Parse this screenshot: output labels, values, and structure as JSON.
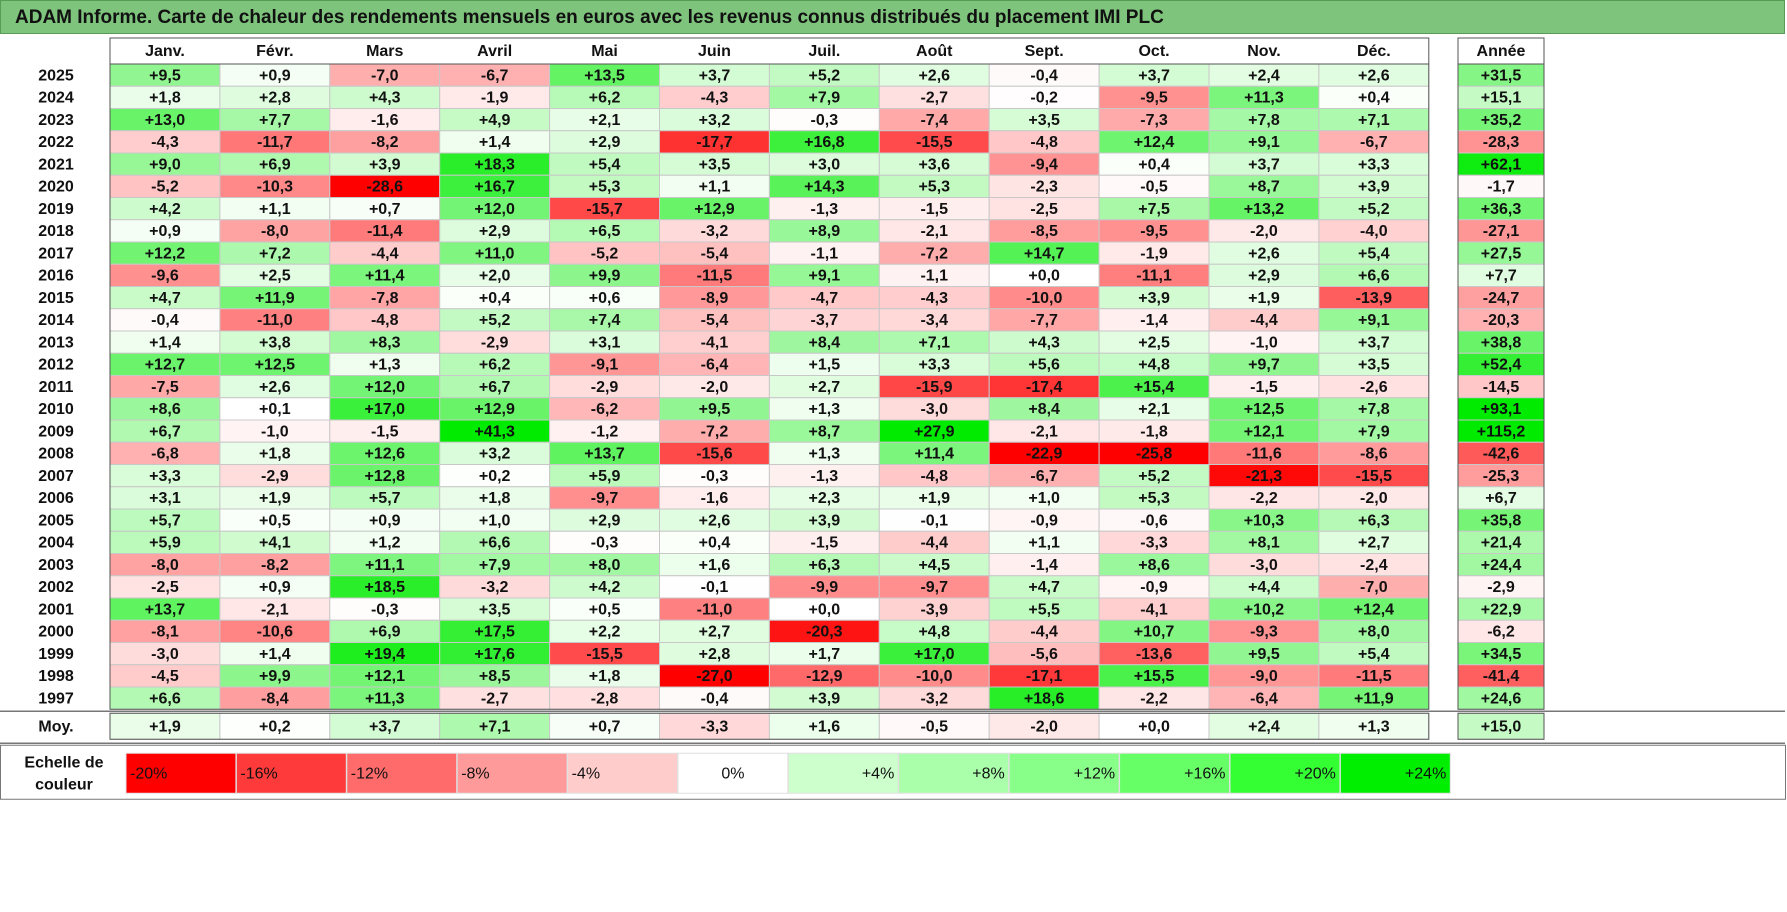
{
  "title": "ADAM Informe. Carte de chaleur des rendements mensuels en euros avec les revenus connus distribués du placement IMI PLC",
  "chart_data": {
    "type": "heatmap",
    "title": "ADAM Informe. Carte de chaleur des rendements mensuels en euros avec les revenus connus distribués du placement IMI PLC",
    "columns": [
      "Janv.",
      "Févr.",
      "Mars",
      "Avril",
      "Mai",
      "Juin",
      "Juil.",
      "Août",
      "Sept.",
      "Oct.",
      "Nov.",
      "Déc."
    ],
    "year_header": "Année",
    "rows": [
      {
        "year": "2025",
        "values": [
          "+9,5",
          "+0,9",
          "-7,0",
          "-6,7",
          "+13,5",
          "+3,7",
          "+5,2",
          "+2,6",
          "-0,4",
          "+3,7",
          "+2,4",
          "+2,6"
        ],
        "annual": "+31,5"
      },
      {
        "year": "2024",
        "values": [
          "+1,8",
          "+2,8",
          "+4,3",
          "-1,9",
          "+6,2",
          "-4,3",
          "+7,9",
          "-2,7",
          "-0,2",
          "-9,5",
          "+11,3",
          "+0,4"
        ],
        "annual": "+15,1"
      },
      {
        "year": "2023",
        "values": [
          "+13,0",
          "+7,7",
          "-1,6",
          "+4,9",
          "+2,1",
          "+3,2",
          "-0,3",
          "-7,4",
          "+3,5",
          "-7,3",
          "+7,8",
          "+7,1"
        ],
        "annual": "+35,2"
      },
      {
        "year": "2022",
        "values": [
          "-4,3",
          "-11,7",
          "-8,2",
          "+1,4",
          "+2,9",
          "-17,7",
          "+16,8",
          "-15,5",
          "-4,8",
          "+12,4",
          "+9,1",
          "-6,7"
        ],
        "annual": "-28,3"
      },
      {
        "year": "2021",
        "values": [
          "+9,0",
          "+6,9",
          "+3,9",
          "+18,3",
          "+5,4",
          "+3,5",
          "+3,0",
          "+3,6",
          "-9,4",
          "+0,4",
          "+3,7",
          "+3,3"
        ],
        "annual": "+62,1"
      },
      {
        "year": "2020",
        "values": [
          "-5,2",
          "-10,3",
          "-28,6",
          "+16,7",
          "+5,3",
          "+1,1",
          "+14,3",
          "+5,3",
          "-2,3",
          "-0,5",
          "+8,7",
          "+3,9"
        ],
        "annual": "-1,7"
      },
      {
        "year": "2019",
        "values": [
          "+4,2",
          "+1,1",
          "+0,7",
          "+12,0",
          "-15,7",
          "+12,9",
          "-1,3",
          "-1,5",
          "-2,5",
          "+7,5",
          "+13,2",
          "+5,2"
        ],
        "annual": "+36,3"
      },
      {
        "year": "2018",
        "values": [
          "+0,9",
          "-8,0",
          "-11,4",
          "+2,9",
          "+6,5",
          "-3,2",
          "+8,9",
          "-2,1",
          "-8,5",
          "-9,5",
          "-2,0",
          "-4,0"
        ],
        "annual": "-27,1"
      },
      {
        "year": "2017",
        "values": [
          "+12,2",
          "+7,2",
          "-4,4",
          "+11,0",
          "-5,2",
          "-5,4",
          "-1,1",
          "-7,2",
          "+14,7",
          "-1,9",
          "+2,6",
          "+5,4"
        ],
        "annual": "+27,5"
      },
      {
        "year": "2016",
        "values": [
          "-9,6",
          "+2,5",
          "+11,4",
          "+2,0",
          "+9,9",
          "-11,5",
          "+9,1",
          "-1,1",
          "+0,0",
          "-11,1",
          "+2,9",
          "+6,6"
        ],
        "annual": "+7,7"
      },
      {
        "year": "2015",
        "values": [
          "+4,7",
          "+11,9",
          "-7,8",
          "+0,4",
          "+0,6",
          "-8,9",
          "-4,7",
          "-4,3",
          "-10,0",
          "+3,9",
          "+1,9",
          "-13,9"
        ],
        "annual": "-24,7"
      },
      {
        "year": "2014",
        "values": [
          "-0,4",
          "-11,0",
          "-4,8",
          "+5,2",
          "+7,4",
          "-5,4",
          "-3,7",
          "-3,4",
          "-7,7",
          "-1,4",
          "-4,4",
          "+9,1"
        ],
        "annual": "-20,3"
      },
      {
        "year": "2013",
        "values": [
          "+1,4",
          "+3,8",
          "+8,3",
          "-2,9",
          "+3,1",
          "-4,1",
          "+8,4",
          "+7,1",
          "+4,3",
          "+2,5",
          "-1,0",
          "+3,7"
        ],
        "annual": "+38,8"
      },
      {
        "year": "2012",
        "values": [
          "+12,7",
          "+12,5",
          "+1,3",
          "+6,2",
          "-9,1",
          "-6,4",
          "+1,5",
          "+3,3",
          "+5,6",
          "+4,8",
          "+9,7",
          "+3,5"
        ],
        "annual": "+52,4"
      },
      {
        "year": "2011",
        "values": [
          "-7,5",
          "+2,6",
          "+12,0",
          "+6,7",
          "-2,9",
          "-2,0",
          "+2,7",
          "-15,9",
          "-17,4",
          "+15,4",
          "-1,5",
          "-2,6"
        ],
        "annual": "-14,5"
      },
      {
        "year": "2010",
        "values": [
          "+8,6",
          "+0,1",
          "+17,0",
          "+12,9",
          "-6,2",
          "+9,5",
          "+1,3",
          "-3,0",
          "+8,4",
          "+2,1",
          "+12,5",
          "+7,8"
        ],
        "annual": "+93,1"
      },
      {
        "year": "2009",
        "values": [
          "+6,7",
          "-1,0",
          "-1,5",
          "+41,3",
          "-1,2",
          "-7,2",
          "+8,7",
          "+27,9",
          "-2,1",
          "-1,8",
          "+12,1",
          "+7,9"
        ],
        "annual": "+115,2"
      },
      {
        "year": "2008",
        "values": [
          "-6,8",
          "+1,8",
          "+12,6",
          "+3,2",
          "+13,7",
          "-15,6",
          "+1,3",
          "+11,4",
          "-22,9",
          "-25,8",
          "-11,6",
          "-8,6"
        ],
        "annual": "-42,6"
      },
      {
        "year": "2007",
        "values": [
          "+3,3",
          "-2,9",
          "+12,8",
          "+0,2",
          "+5,9",
          "-0,3",
          "-1,3",
          "-4,8",
          "-6,7",
          "+5,2",
          "-21,3",
          "-15,5"
        ],
        "annual": "-25,3"
      },
      {
        "year": "2006",
        "values": [
          "+3,1",
          "+1,9",
          "+5,7",
          "+1,8",
          "-9,7",
          "-1,6",
          "+2,3",
          "+1,9",
          "+1,0",
          "+5,3",
          "-2,2",
          "-2,0"
        ],
        "annual": "+6,7"
      },
      {
        "year": "2005",
        "values": [
          "+5,7",
          "+0,5",
          "+0,9",
          "+1,0",
          "+2,9",
          "+2,6",
          "+3,9",
          "-0,1",
          "-0,9",
          "-0,6",
          "+10,3",
          "+6,3"
        ],
        "annual": "+35,8"
      },
      {
        "year": "2004",
        "values": [
          "+5,9",
          "+4,1",
          "+1,2",
          "+6,6",
          "-0,3",
          "+0,4",
          "-1,5",
          "-4,4",
          "+1,1",
          "-3,3",
          "+8,1",
          "+2,7"
        ],
        "annual": "+21,4"
      },
      {
        "year": "2003",
        "values": [
          "-8,0",
          "-8,2",
          "+11,1",
          "+7,9",
          "+8,0",
          "+1,6",
          "+6,3",
          "+4,5",
          "-1,4",
          "+8,6",
          "-3,0",
          "-2,4"
        ],
        "annual": "+24,4"
      },
      {
        "year": "2002",
        "values": [
          "-2,5",
          "+0,9",
          "+18,5",
          "-3,2",
          "+4,2",
          "-0,1",
          "-9,9",
          "-9,7",
          "+4,7",
          "-0,9",
          "+4,4",
          "-7,0"
        ],
        "annual": "-2,9"
      },
      {
        "year": "2001",
        "values": [
          "+13,7",
          "-2,1",
          "-0,3",
          "+3,5",
          "+0,5",
          "-11,0",
          "+0,0",
          "-3,9",
          "+5,5",
          "-4,1",
          "+10,2",
          "+12,4"
        ],
        "annual": "+22,9"
      },
      {
        "year": "2000",
        "values": [
          "-8,1",
          "-10,6",
          "+6,9",
          "+17,5",
          "+2,2",
          "+2,7",
          "-20,3",
          "+4,8",
          "-4,4",
          "+10,7",
          "-9,3",
          "+8,0"
        ],
        "annual": "-6,2"
      },
      {
        "year": "1999",
        "values": [
          "-3,0",
          "+1,4",
          "+19,4",
          "+17,6",
          "-15,5",
          "+2,8",
          "+1,7",
          "+17,0",
          "-5,6",
          "-13,6",
          "+9,5",
          "+5,4"
        ],
        "annual": "+34,5"
      },
      {
        "year": "1998",
        "values": [
          "-4,5",
          "+9,9",
          "+12,1",
          "+8,5",
          "+1,8",
          "-27,0",
          "-12,9",
          "-10,0",
          "-17,1",
          "+15,5",
          "-9,0",
          "-11,5"
        ],
        "annual": "-41,4"
      },
      {
        "year": "1997",
        "values": [
          "+6,6",
          "-8,4",
          "+11,3",
          "-2,7",
          "-2,8",
          "-0,4",
          "+3,9",
          "-3,2",
          "+18,6",
          "-2,2",
          "-6,4",
          "+11,9"
        ],
        "annual": "+24,6"
      }
    ],
    "average": {
      "label": "Moy.",
      "values": [
        "+1,9",
        "+0,2",
        "+3,7",
        "+7,1",
        "+0,7",
        "-3,3",
        "+1,6",
        "-0,5",
        "-2,0",
        "+0,0",
        "+2,4",
        "+1,3"
      ],
      "annual": "+15,0"
    },
    "legend": {
      "label_line1": "Echelle de",
      "label_line2": "couleur",
      "items": [
        {
          "label": "-20%",
          "color": "#ff0000"
        },
        {
          "label": "-16%",
          "color": "#ff3a3a"
        },
        {
          "label": "-12%",
          "color": "#ff6b6b"
        },
        {
          "label": "-8%",
          "color": "#ff9a9a"
        },
        {
          "label": "-4%",
          "color": "#ffcccc"
        },
        {
          "label": "0%",
          "color": "#ffffff"
        },
        {
          "label": "+4%",
          "color": "#ccffcc"
        },
        {
          "label": "+8%",
          "color": "#aaffaa"
        },
        {
          "label": "+12%",
          "color": "#88ff88"
        },
        {
          "label": "+16%",
          "color": "#66ff66"
        },
        {
          "label": "+20%",
          "color": "#33ff33"
        },
        {
          "label": "+24%",
          "color": "#00ee00"
        }
      ]
    }
  }
}
